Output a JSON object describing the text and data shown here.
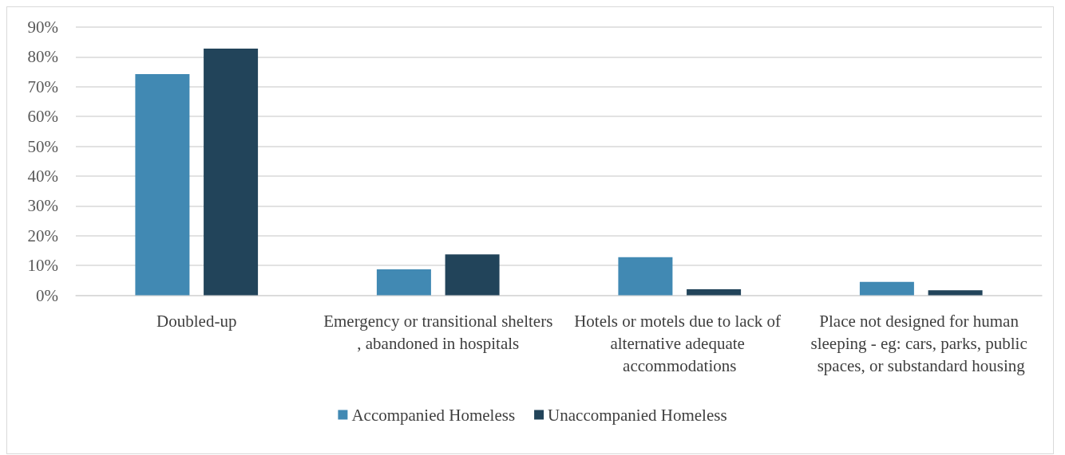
{
  "chart_data": {
    "type": "bar",
    "categories": [
      "Doubled-up",
      "Emergency or transitional shelters, abandoned in hospitals",
      "Hotels or motels due to lack of alternative adequate accommodations",
      "Place not designed for human sleeping - eg: cars, parks, public spaces, or substandard housing"
    ],
    "series": [
      {
        "name": "Accompanied Homeless",
        "color": "#4189b3",
        "values": [
          74.2,
          8.7,
          12.8,
          4.5
        ]
      },
      {
        "name": "Unaccompanied Homeless",
        "color": "#22445a",
        "values": [
          82.8,
          13.7,
          2.0,
          1.7
        ]
      }
    ],
    "ylim": [
      0,
      90
    ],
    "yticks": [
      {
        "value": 0,
        "label": "0%"
      },
      {
        "value": 10,
        "label": "10%"
      },
      {
        "value": 20,
        "label": "20%"
      },
      {
        "value": 30,
        "label": "30%"
      },
      {
        "value": 40,
        "label": "40%"
      },
      {
        "value": 50,
        "label": "50%"
      },
      {
        "value": 60,
        "label": "60%"
      },
      {
        "value": 70,
        "label": "70%"
      },
      {
        "value": 80,
        "label": "80%"
      },
      {
        "value": 90,
        "label": "90%"
      }
    ],
    "grid": "y",
    "legend": "bottom"
  }
}
